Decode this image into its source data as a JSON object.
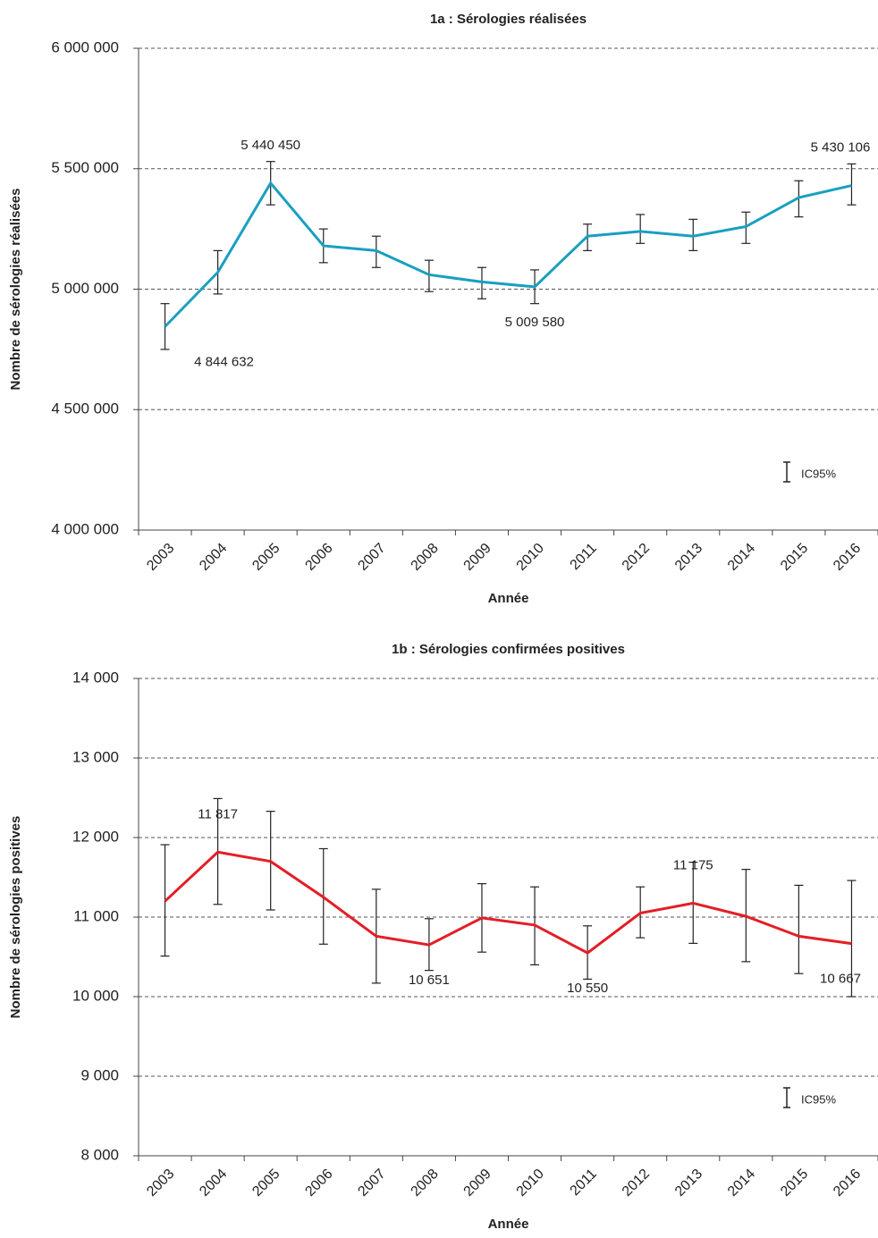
{
  "chart_data": [
    {
      "type": "line",
      "title": "1a : Sérologies réalisées",
      "x_label": "Année",
      "y_label": "Nombre de sérologies réalisées",
      "categories": [
        "2003",
        "2004",
        "2005",
        "2006",
        "2007",
        "2008",
        "2009",
        "2010",
        "2011",
        "2012",
        "2013",
        "2014",
        "2015",
        "2016"
      ],
      "series": [
        {
          "color": "#1a9fc0",
          "values": [
            4844632,
            5070000,
            5440450,
            5180000,
            5160000,
            5060000,
            5030000,
            5009580,
            5220000,
            5240000,
            5220000,
            5260000,
            5380000,
            5430106
          ],
          "value_labels": [
            "4 844 632",
            null,
            "5 440 450",
            null,
            null,
            null,
            null,
            "5 009 580",
            null,
            null,
            null,
            null,
            null,
            "5 430 106"
          ],
          "ci_low": [
            4750000,
            4980000,
            5350000,
            5110000,
            5090000,
            4990000,
            4960000,
            4940000,
            5160000,
            5190000,
            5160000,
            5190000,
            5300000,
            5350000
          ],
          "ci_high": [
            4940000,
            5160000,
            5530000,
            5250000,
            5220000,
            5120000,
            5090000,
            5080000,
            5270000,
            5310000,
            5290000,
            5320000,
            5450000,
            5520000
          ]
        }
      ],
      "error_bar_label": "IC95%",
      "ylim": [
        4000000,
        6000000
      ],
      "yticks": [
        {
          "value": 4000000,
          "label": "4 000 000"
        },
        {
          "value": 4500000,
          "label": "4 500 000"
        },
        {
          "value": 5000000,
          "label": "5 000 000"
        },
        {
          "value": 5500000,
          "label": "5 500 000"
        },
        {
          "value": 6000000,
          "label": "6 000 000"
        }
      ],
      "grid": true
    },
    {
      "type": "line",
      "title": "1b : Sérologies confirmées positives",
      "x_label": "Année",
      "y_label": "Nombre de sérologies positives",
      "categories": [
        "2003",
        "2004",
        "2005",
        "2006",
        "2007",
        "2008",
        "2009",
        "2010",
        "2011",
        "2012",
        "2013",
        "2014",
        "2015",
        "2016"
      ],
      "series": [
        {
          "color": "#e41e26",
          "values": [
            11200,
            11817,
            11700,
            11250,
            10760,
            10651,
            10990,
            10900,
            10550,
            11050,
            11175,
            11010,
            10760,
            10667
          ],
          "value_labels": [
            null,
            "11 817",
            null,
            null,
            null,
            "10 651",
            null,
            null,
            "10 550",
            null,
            "11 175",
            null,
            null,
            "10 667"
          ],
          "ci_low": [
            10510,
            11160,
            11090,
            10660,
            10170,
            10330,
            10560,
            10400,
            10220,
            10740,
            10670,
            10440,
            10290,
            10000
          ],
          "ci_high": [
            11910,
            12490,
            12330,
            11860,
            11350,
            10980,
            11420,
            11380,
            10890,
            11380,
            11690,
            11600,
            11400,
            11460
          ]
        }
      ],
      "error_bar_label": "IC95%",
      "ylim": [
        8000,
        14000
      ],
      "yticks": [
        {
          "value": 8000,
          "label": "8 000"
        },
        {
          "value": 9000,
          "label": "9 000"
        },
        {
          "value": 10000,
          "label": "10 000"
        },
        {
          "value": 11000,
          "label": "11 000"
        },
        {
          "value": 12000,
          "label": "12 000"
        },
        {
          "value": 13000,
          "label": "13 000"
        },
        {
          "value": 14000,
          "label": "14 000"
        }
      ],
      "grid": true
    }
  ]
}
